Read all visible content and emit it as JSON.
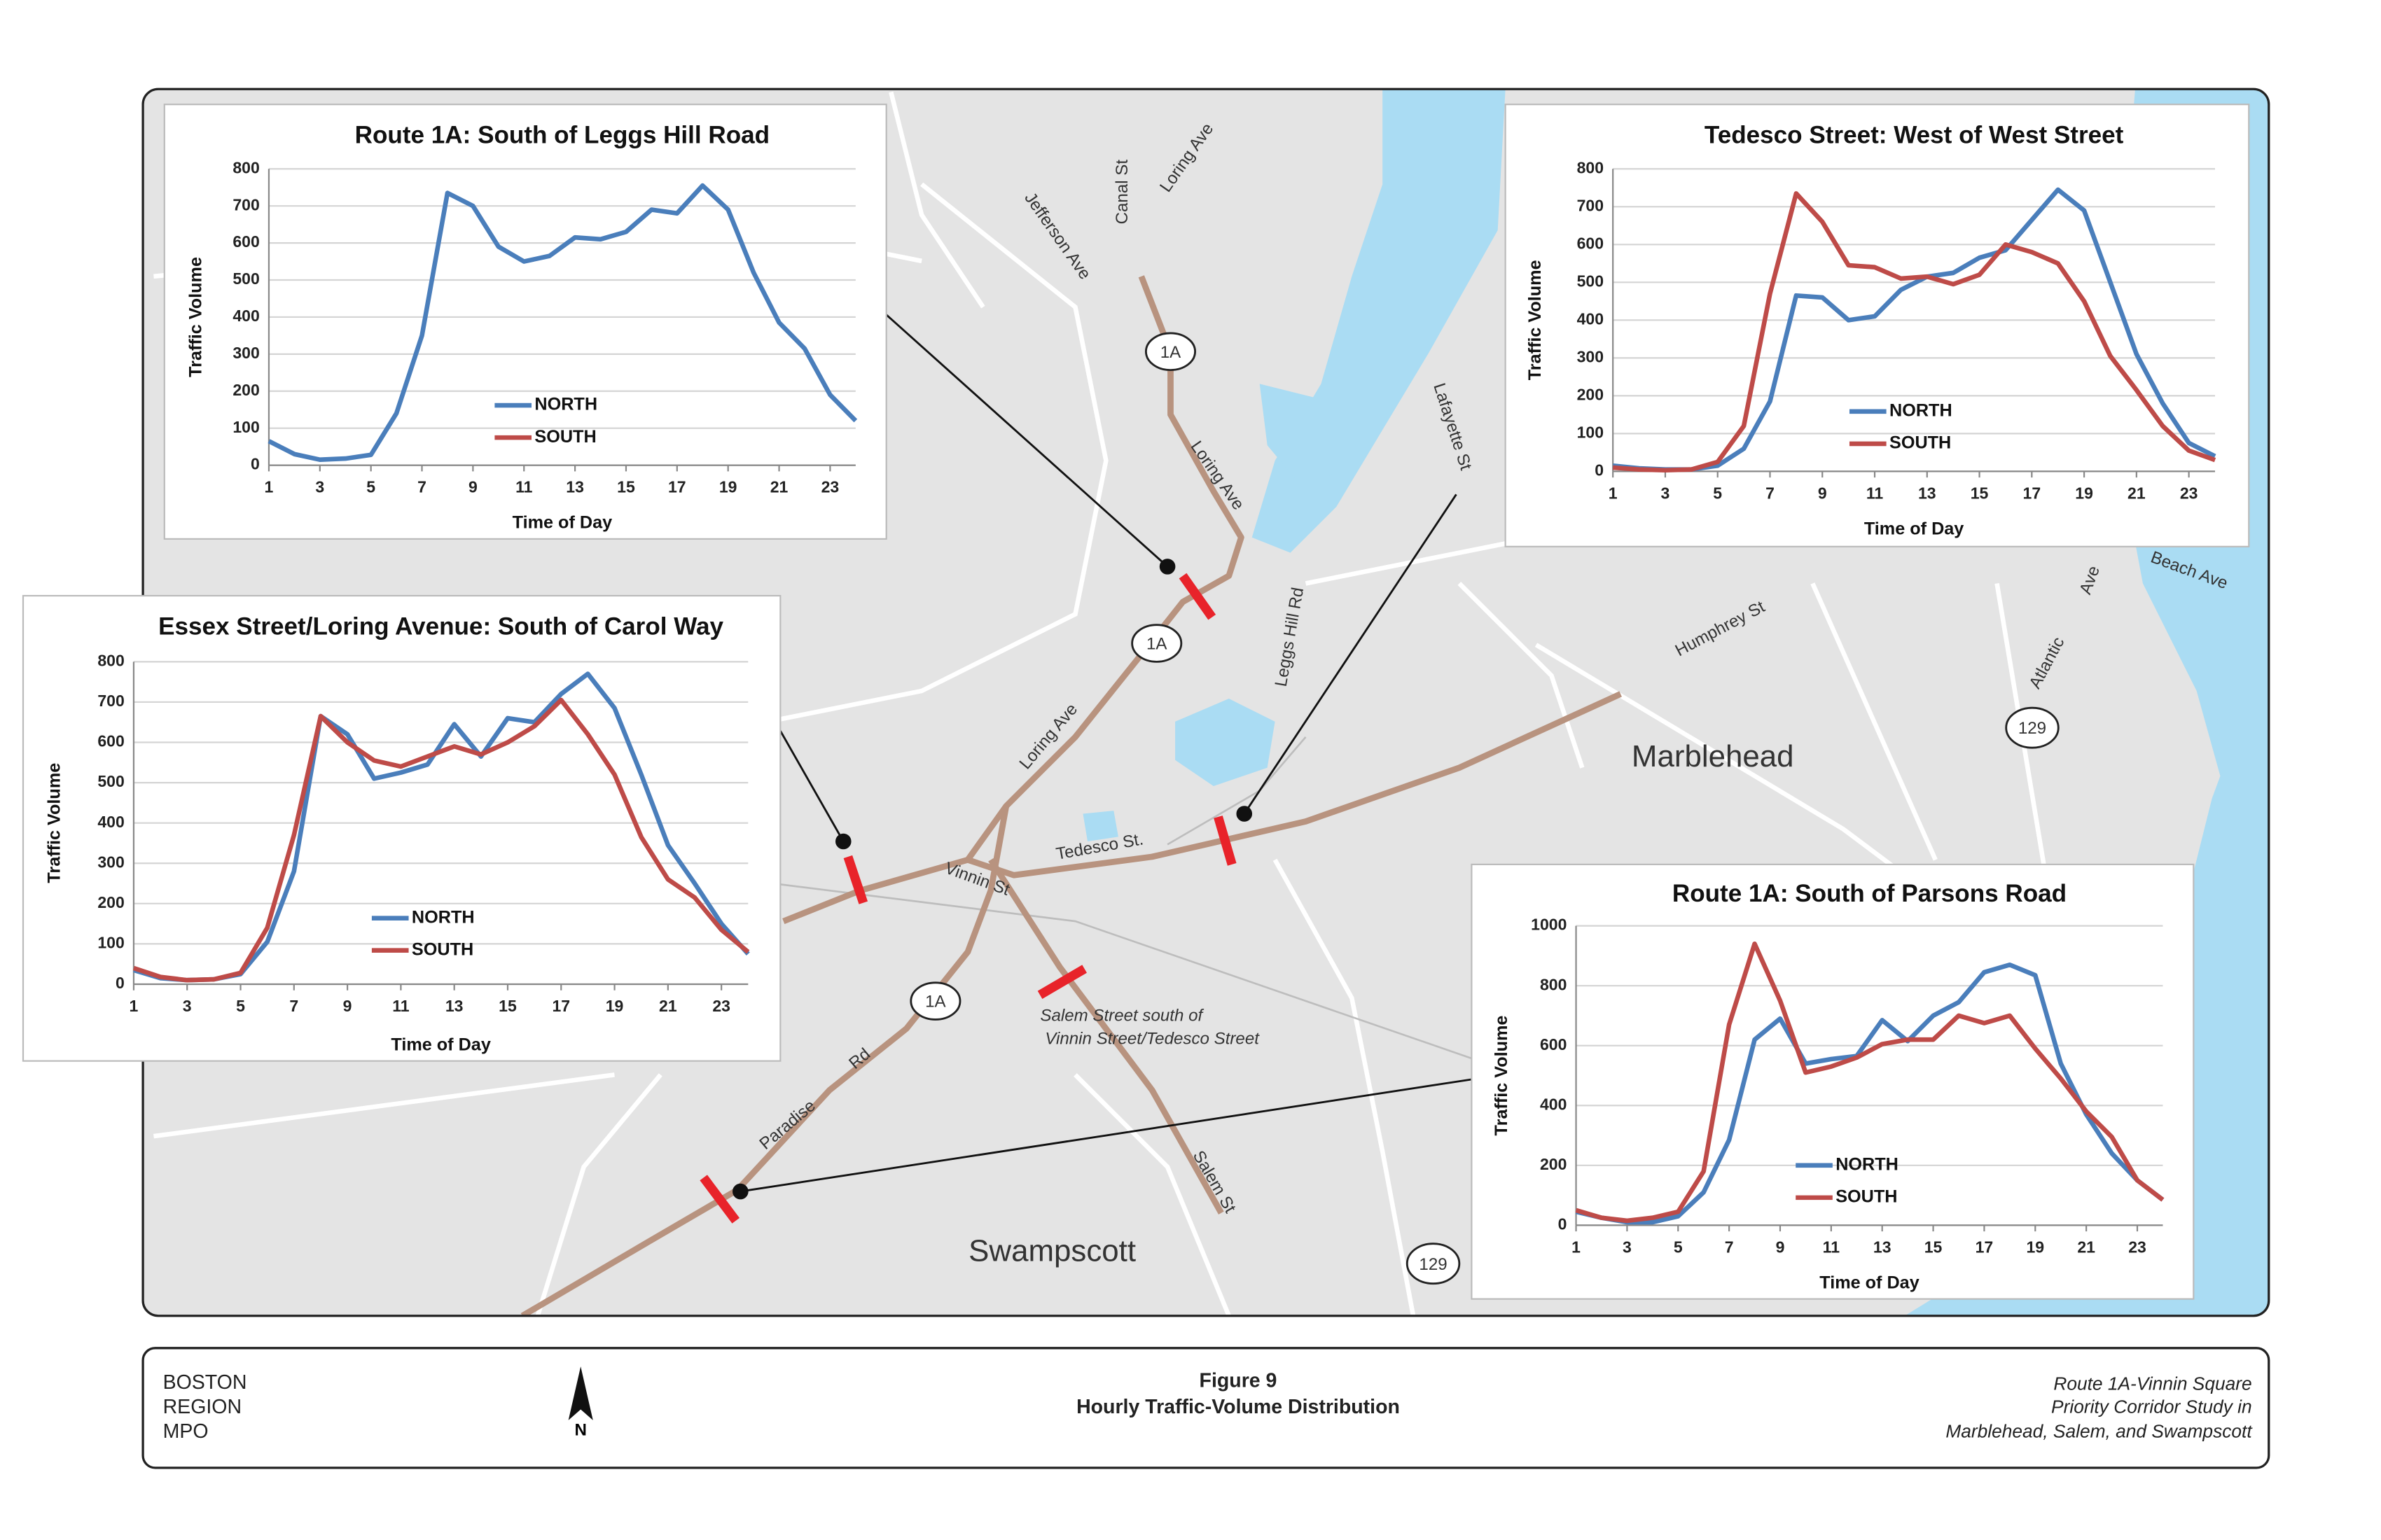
{
  "map": {
    "labels": [
      "Canal St",
      "Loring Ave",
      "Jefferson Ave",
      "Lafayette St",
      "Loring Ave",
      "Leggs Hill Rd",
      "Humphrey St",
      "Atlantic",
      "Ave",
      "Beach Ave",
      "Marblehead",
      "Swampscott",
      "Tedesco St.",
      "Vinnin St",
      "Loring Ave",
      "Salem Street south of",
      "Vinnin Street/Tedesco Street",
      "Paradise",
      "Rd",
      "Salem St"
    ],
    "shields": [
      "1A",
      "1A",
      "1A",
      "129",
      "129"
    ]
  },
  "chart_data": [
    {
      "type": "line",
      "title": "Route 1A: South of Leggs Hill Road",
      "y_label": "Traffic Volume",
      "x_label": "Time of Day",
      "x": [
        1,
        2,
        3,
        4,
        5,
        6,
        7,
        8,
        9,
        10,
        11,
        12,
        13,
        14,
        15,
        16,
        17,
        18,
        19,
        20,
        21,
        22,
        23,
        24
      ],
      "xlim": [
        1,
        24
      ],
      "xticks": [
        1,
        3,
        5,
        7,
        9,
        11,
        13,
        15,
        17,
        19,
        21,
        23
      ],
      "ylim": [
        0,
        800
      ],
      "yticks": [
        0,
        100,
        200,
        300,
        400,
        500,
        600,
        700,
        800
      ],
      "grid": true,
      "series": [
        {
          "name": "NORTH",
          "color": "#4a7ebb",
          "values": [
            65,
            30,
            15,
            18,
            28,
            140,
            350,
            735,
            700,
            590,
            550,
            565,
            615,
            610,
            630,
            690,
            680,
            755,
            690,
            520,
            385,
            315,
            190,
            120
          ]
        },
        {
          "name": "SOUTH",
          "color": "#be4b48",
          "values": [
            null,
            null,
            null,
            null,
            null,
            null,
            null,
            null,
            null,
            null,
            null,
            null,
            null,
            null,
            null,
            null,
            null,
            null,
            null,
            null,
            null,
            null,
            null,
            null
          ]
        }
      ]
    },
    {
      "type": "line",
      "title": "Tedesco Street: West of West Street",
      "y_label": "Traffic Volume",
      "x_label": "Time of Day",
      "x": [
        1,
        2,
        3,
        4,
        5,
        6,
        7,
        8,
        9,
        10,
        11,
        12,
        13,
        14,
        15,
        16,
        17,
        18,
        19,
        20,
        21,
        22,
        23,
        24
      ],
      "xlim": [
        1,
        24
      ],
      "xticks": [
        1,
        3,
        5,
        7,
        9,
        11,
        13,
        15,
        17,
        19,
        21,
        23
      ],
      "ylim": [
        0,
        800
      ],
      "yticks": [
        0,
        100,
        200,
        300,
        400,
        500,
        600,
        700,
        800
      ],
      "grid": true,
      "series": [
        {
          "name": "NORTH",
          "color": "#4a7ebb",
          "values": [
            15,
            8,
            5,
            5,
            15,
            60,
            185,
            465,
            460,
            400,
            410,
            480,
            515,
            525,
            565,
            585,
            665,
            745,
            690,
            500,
            310,
            180,
            75,
            40
          ]
        },
        {
          "name": "SOUTH",
          "color": "#be4b48",
          "values": [
            10,
            5,
            3,
            5,
            25,
            120,
            470,
            735,
            660,
            545,
            540,
            510,
            515,
            495,
            520,
            600,
            580,
            550,
            450,
            305,
            215,
            120,
            55,
            30
          ]
        }
      ]
    },
    {
      "type": "line",
      "title": "Essex Street/Loring Avenue: South of Carol Way",
      "y_label": "Traffic Volume",
      "x_label": "Time of Day",
      "x": [
        1,
        2,
        3,
        4,
        5,
        6,
        7,
        8,
        9,
        10,
        11,
        12,
        13,
        14,
        15,
        16,
        17,
        18,
        19,
        20,
        21,
        22,
        23,
        24
      ],
      "xlim": [
        1,
        24
      ],
      "xticks": [
        1,
        3,
        5,
        7,
        9,
        11,
        13,
        15,
        17,
        19,
        21,
        23
      ],
      "ylim": [
        0,
        800
      ],
      "yticks": [
        0,
        100,
        200,
        300,
        400,
        500,
        600,
        700,
        800
      ],
      "grid": true,
      "series": [
        {
          "name": "NORTH",
          "color": "#4a7ebb",
          "values": [
            35,
            15,
            10,
            12,
            25,
            105,
            280,
            665,
            620,
            510,
            525,
            545,
            645,
            565,
            660,
            650,
            720,
            770,
            685,
            520,
            345,
            250,
            150,
            75
          ]
        },
        {
          "name": "SOUTH",
          "color": "#be4b48",
          "values": [
            40,
            18,
            10,
            12,
            28,
            140,
            370,
            665,
            600,
            555,
            540,
            565,
            590,
            570,
            600,
            640,
            705,
            620,
            520,
            365,
            260,
            215,
            135,
            80
          ]
        }
      ]
    },
    {
      "type": "line",
      "title": "Route 1A: South of Parsons Road",
      "y_label": "Traffic Volume",
      "x_label": "Time of Day",
      "x": [
        1,
        2,
        3,
        4,
        5,
        6,
        7,
        8,
        9,
        10,
        11,
        12,
        13,
        14,
        15,
        16,
        17,
        18,
        19,
        20,
        21,
        22,
        23,
        24
      ],
      "xlim": [
        1,
        24
      ],
      "xticks": [
        1,
        3,
        5,
        7,
        9,
        11,
        13,
        15,
        17,
        19,
        21,
        23
      ],
      "ylim": [
        0,
        1000
      ],
      "yticks": [
        0,
        200,
        400,
        600,
        800,
        1000
      ],
      "grid": true,
      "series": [
        {
          "name": "NORTH",
          "color": "#4a7ebb",
          "values": [
            45,
            25,
            10,
            10,
            30,
            110,
            285,
            620,
            690,
            540,
            555,
            565,
            685,
            615,
            700,
            745,
            845,
            870,
            835,
            540,
            370,
            240,
            150,
            85
          ]
        },
        {
          "name": "SOUTH",
          "color": "#be4b48",
          "values": [
            50,
            25,
            15,
            25,
            45,
            180,
            670,
            940,
            750,
            510,
            530,
            560,
            605,
            620,
            620,
            700,
            675,
            700,
            590,
            490,
            380,
            295,
            150,
            85
          ]
        }
      ]
    }
  ],
  "footer": {
    "agency": [
      "BOSTON",
      "REGION",
      "MPO"
    ],
    "figure": "Figure 9",
    "caption": "Hourly Traffic-Volume Distribution",
    "study": [
      "Route 1A-Vinnin Square",
      "Priority Corridor Study in",
      "Marblehead, Salem, and Swampscott"
    ],
    "north": "N"
  }
}
